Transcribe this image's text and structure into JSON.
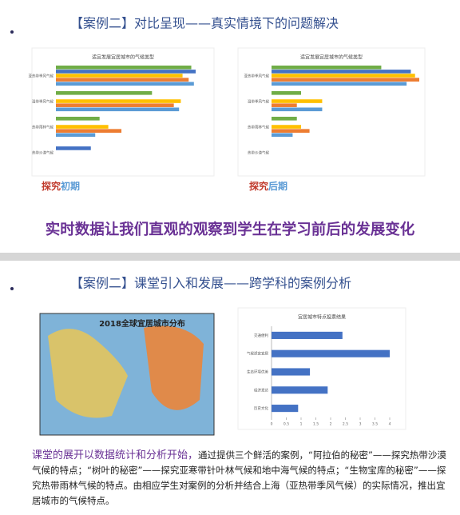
{
  "slide1": {
    "title": "【案例二】对比呈现——真实情境下的问题解决",
    "label_left": {
      "a": "探究",
      "b": "初期"
    },
    "label_right": {
      "a": "探究",
      "b": "后期"
    },
    "caption": "实时数据让我们直观的观察到学生在学习前后的发展变化"
  },
  "slide2": {
    "title": "【案例二】课堂引入和发展——跨学科的案例分析",
    "map_title": "2018全球宜居城市分布",
    "paragraph": {
      "lead": "课堂的展开以数据统计和分析开始，",
      "body": "通过提供三个鲜活的案例，“阿拉伯的秘密”——探究热带沙漠气候的特点；“树叶的秘密”——探究亚寒带针叶林气候和地中海气候的特点；“生物宝库的秘密”——探究热带雨林气候的特点。由相应学生对案例的分析并结合上海（亚热带季风气候）的实际情况，推出宜居城市的气候特点。"
    }
  },
  "chart_data": [
    {
      "type": "grouped-hbar",
      "title": "适宜发展宜居城市的气候类型",
      "categories": [
        "亚热带季风气候",
        "温带季风气候",
        "热带雨林气候",
        "热带沙漠气候"
      ],
      "series": [
        {
          "color": "#70ad47",
          "values": [
            15.5,
            11,
            5,
            null
          ]
        },
        {
          "color": "#4472c4",
          "values": [
            16,
            null,
            null,
            4
          ]
        },
        {
          "color": "#ffc000",
          "values": [
            14.5,
            14.3,
            6,
            null
          ]
        },
        {
          "color": "#ed7d31",
          "values": [
            15.2,
            13.5,
            7.5,
            null
          ]
        },
        {
          "color": "#5b9bd5",
          "values": [
            15.8,
            14.1,
            4.5,
            null
          ]
        }
      ]
    },
    {
      "type": "grouped-hbar",
      "title": "适宜发展宜居城市的气候类型",
      "categories": [
        "亚热带季风气候",
        "温带季风气候",
        "热带雨林气候",
        "热带沙漠气候"
      ],
      "series": [
        {
          "color": "#70ad47",
          "values": [
            13,
            3.5,
            3,
            null
          ]
        },
        {
          "color": "#4472c4",
          "values": [
            16.5,
            null,
            null,
            null
          ]
        },
        {
          "color": "#ffc000",
          "values": [
            17,
            6,
            3.5,
            null
          ]
        },
        {
          "color": "#ed7d31",
          "values": [
            17.5,
            3,
            4.5,
            null
          ]
        },
        {
          "color": "#5b9bd5",
          "values": [
            16,
            6,
            2.5,
            null
          ]
        }
      ]
    },
    {
      "type": "hbar",
      "title": "宜居城市特点投票结果",
      "categories": [
        "交通便利",
        "气候适宜宜居",
        "生态环境优美",
        "经济发达",
        "历史文化"
      ],
      "values": [
        2.4,
        4,
        1.3,
        1.9,
        0.9
      ],
      "color": "#4472c4",
      "xlim": [
        0,
        4
      ],
      "xticks": [
        0,
        0.5,
        1,
        1.5,
        2,
        2.5,
        3,
        3.5,
        4
      ]
    }
  ]
}
